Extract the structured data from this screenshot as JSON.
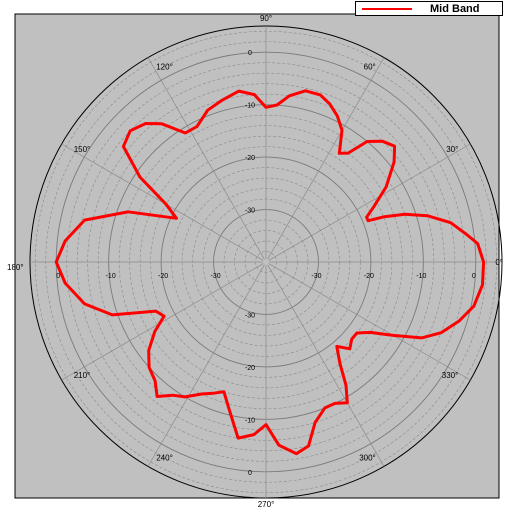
{
  "chart_data": {
    "type": "polar-line",
    "title": "",
    "legend": {
      "placement": "top-right",
      "entries": [
        "Mid Band"
      ]
    },
    "angle_unit": "degrees",
    "angle_ticks": [
      0,
      30,
      60,
      90,
      120,
      150,
      180,
      210,
      240,
      270,
      300,
      330
    ],
    "angle_tick_labels": [
      "0°",
      "30°",
      "60°",
      "90°",
      "120°",
      "150°",
      "180°",
      "210°",
      "240°",
      "270°",
      "300°",
      "330°"
    ],
    "radial_axis": {
      "range": [
        -40,
        5
      ],
      "labeled_ticks": [
        0,
        -10,
        -20,
        -30
      ],
      "labeled_ticks_left": [
        0,
        -10,
        -20,
        -30
      ],
      "labeled_ticks_top": [
        0,
        -10,
        -20,
        -30
      ],
      "labeled_ticks_bottom": [
        0,
        -10,
        -20,
        -30
      ],
      "labels_shown_left": [
        "0",
        "-10",
        "-20",
        "-30"
      ],
      "minor_ring_step": 2
    },
    "grid": true,
    "series": [
      {
        "name": "Mid Band",
        "color": "#ff0000",
        "points": [
          [
            0,
            1.5
          ],
          [
            5,
            0.5
          ],
          [
            8,
            -1.5
          ],
          [
            12,
            -4
          ],
          [
            16,
            -8
          ],
          [
            19,
            -12
          ],
          [
            21,
            -16
          ],
          [
            22,
            -19
          ],
          [
            24,
            -19
          ],
          [
            27,
            -17
          ],
          [
            32,
            -13
          ],
          [
            38,
            -9
          ],
          [
            42,
            -7
          ],
          [
            46,
            -8
          ],
          [
            50,
            -10
          ],
          [
            53,
            -14
          ],
          [
            56,
            -15
          ],
          [
            60,
            -11
          ],
          [
            64,
            -9
          ],
          [
            68,
            -7.5
          ],
          [
            72,
            -6.5
          ],
          [
            77,
            -6.5
          ],
          [
            82,
            -8
          ],
          [
            86,
            -10
          ],
          [
            90,
            -10.5
          ],
          [
            94,
            -8
          ],
          [
            99,
            -7
          ],
          [
            105,
            -8
          ],
          [
            111,
            -9
          ],
          [
            117,
            -11
          ],
          [
            122,
            -11
          ],
          [
            127,
            -7
          ],
          [
            131,
            -5
          ],
          [
            136,
            -4
          ],
          [
            141,
            -5
          ],
          [
            146,
            -11
          ],
          [
            150,
            -18
          ],
          [
            154,
            -21
          ],
          [
            160,
            -12
          ],
          [
            167,
            -4.5
          ],
          [
            174,
            -1.5
          ],
          [
            180,
            0
          ],
          [
            186,
            -1.5
          ],
          [
            193,
            -4.5
          ],
          [
            199,
            -9
          ],
          [
            204,
            -17
          ],
          [
            208,
            -18
          ],
          [
            212,
            -15
          ],
          [
            217,
            -12
          ],
          [
            222,
            -10
          ],
          [
            227,
            -9
          ],
          [
            231,
            -7
          ],
          [
            235,
            -9
          ],
          [
            239,
            -10
          ],
          [
            244,
            -12
          ],
          [
            248,
            -13
          ],
          [
            252,
            -14
          ],
          [
            256,
            -11
          ],
          [
            261,
            -6
          ],
          [
            266,
            -7
          ],
          [
            270,
            -9
          ],
          [
            274,
            -5
          ],
          [
            279,
            -3
          ],
          [
            283,
            -4
          ],
          [
            287,
            -8
          ],
          [
            292,
            -10
          ],
          [
            296,
            -10
          ],
          [
            300,
            -9
          ],
          [
            303,
            -12
          ],
          [
            306,
            -16
          ],
          [
            310,
            -19
          ],
          [
            314,
            -17
          ],
          [
            318,
            -18
          ],
          [
            322,
            -18
          ],
          [
            326,
            -16
          ],
          [
            330,
            -12
          ],
          [
            334,
            -7
          ],
          [
            338,
            -4
          ],
          [
            343,
            -1.5
          ],
          [
            348,
            0.5
          ],
          [
            354,
            1.5
          ],
          [
            360,
            1.5
          ]
        ]
      }
    ]
  },
  "legend_label": "Mid Band",
  "colors": {
    "plot_background": "#c0c0c0",
    "circle_edge": "#000000",
    "grid": "#808080",
    "series": "#ff0000"
  }
}
